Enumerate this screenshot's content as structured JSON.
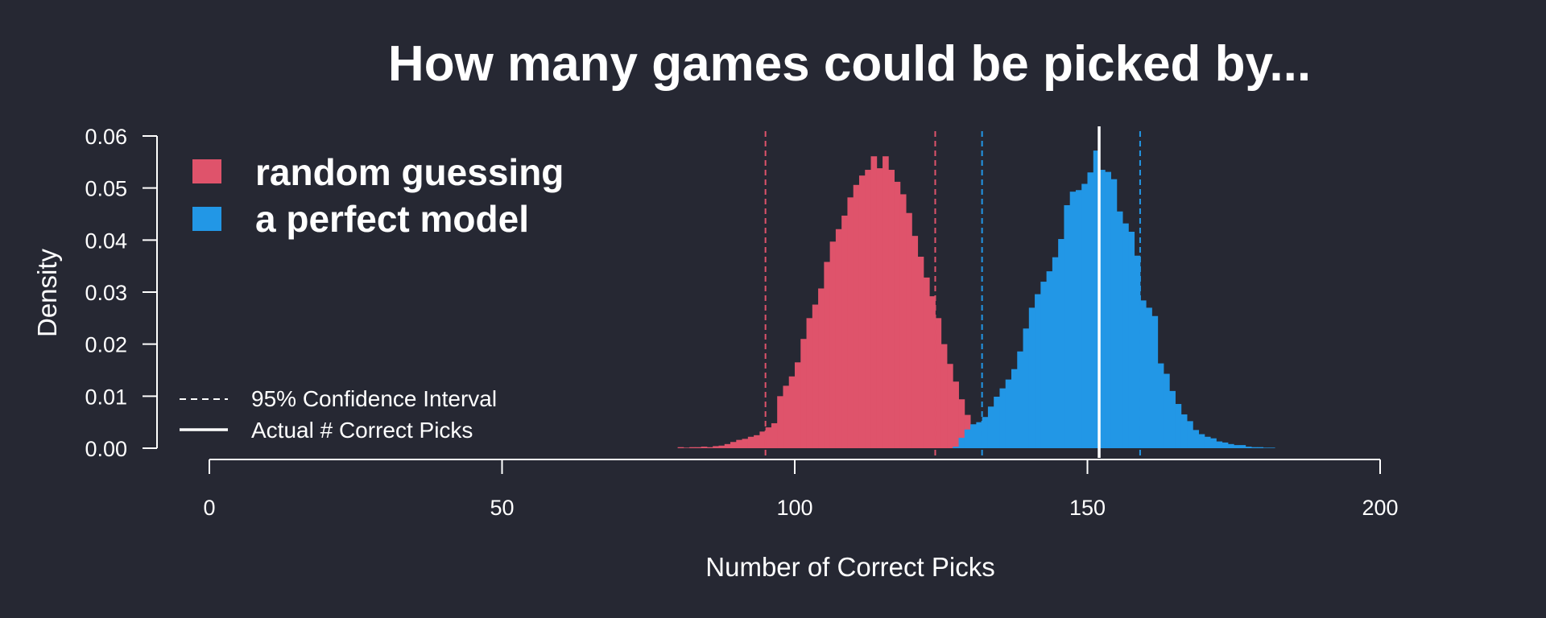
{
  "chart_data": {
    "type": "bar",
    "title": "How many games could be picked by...",
    "xlabel": "Number of Correct Picks",
    "ylabel": "Density",
    "xlim": [
      0,
      200
    ],
    "ylim": [
      0,
      0.06
    ],
    "x_ticks": [
      "0",
      "50",
      "100",
      "150",
      "200"
    ],
    "y_ticks": [
      "0.00",
      "0.01",
      "0.02",
      "0.03",
      "0.04",
      "0.05",
      "0.06"
    ],
    "bin_width": 1,
    "legend": {
      "placement": "top-left",
      "series_entries": [
        "random guessing",
        "a perfect model"
      ],
      "line_entries": [
        "95% Confidence Interval",
        "Actual # Correct Picks"
      ]
    },
    "series": [
      {
        "name": "random guessing",
        "color": "#df536b",
        "ci": [
          95,
          124
        ],
        "x_start": 80,
        "values": [
          0.0002,
          0.0001,
          0.0002,
          0.0002,
          0.0003,
          0.0002,
          0.0004,
          0.0005,
          0.0008,
          0.0012,
          0.0016,
          0.0018,
          0.0022,
          0.0025,
          0.0032,
          0.004,
          0.0048,
          0.01,
          0.012,
          0.0138,
          0.0165,
          0.021,
          0.025,
          0.0276,
          0.0307,
          0.0358,
          0.0397,
          0.0421,
          0.0447,
          0.0482,
          0.0506,
          0.0524,
          0.0535,
          0.0561,
          0.0538,
          0.0561,
          0.0535,
          0.0512,
          0.0488,
          0.0452,
          0.0408,
          0.0368,
          0.0328,
          0.0292,
          0.025,
          0.02,
          0.0162,
          0.0128,
          0.0094,
          0.0064,
          0.0045,
          0.0032,
          0.0022,
          0.0016,
          0.001,
          0.0008,
          0.0005,
          0.0004,
          0.0003,
          0.0002,
          0.0001
        ]
      },
      {
        "name": "a perfect model",
        "color": "#2297e6",
        "ci": [
          132,
          159
        ],
        "actual": 152,
        "x_start": 127,
        "values": [
          0.0003,
          0.002,
          0.0036,
          0.0046,
          0.005,
          0.006,
          0.008,
          0.0099,
          0.0115,
          0.0132,
          0.0152,
          0.0186,
          0.023,
          0.027,
          0.0296,
          0.032,
          0.034,
          0.0367,
          0.0402,
          0.0467,
          0.0493,
          0.0496,
          0.0508,
          0.053,
          0.0572,
          0.0535,
          0.0531,
          0.0517,
          0.0455,
          0.0432,
          0.0416,
          0.037,
          0.0284,
          0.027,
          0.0254,
          0.0163,
          0.0143,
          0.011,
          0.0085,
          0.0065,
          0.0052,
          0.0035,
          0.0027,
          0.0022,
          0.0019,
          0.0013,
          0.0011,
          0.0008,
          0.0006,
          0.0006,
          0.0003,
          0.0002,
          0.0002,
          0.0001,
          0.0001
        ]
      }
    ]
  }
}
